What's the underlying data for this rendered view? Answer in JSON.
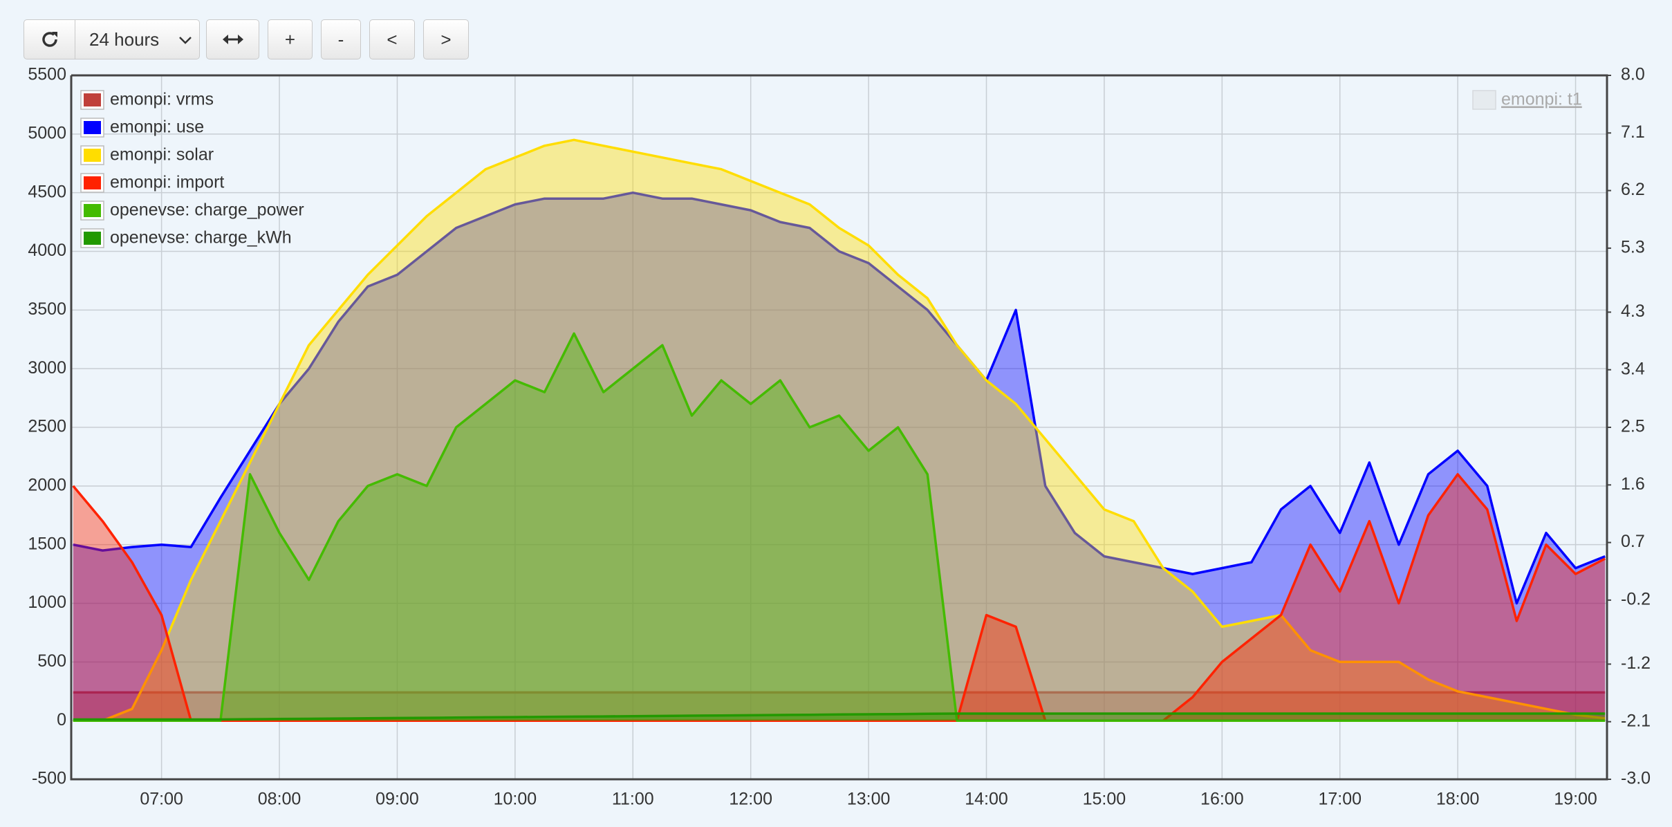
{
  "controls": {
    "period": "24 hours",
    "buttons": [
      "+",
      "-",
      "<",
      ">"
    ]
  },
  "chart_data": {
    "type": "line",
    "x": [
      "06:15",
      "06:30",
      "06:45",
      "07:00",
      "07:15",
      "07:30",
      "07:45",
      "08:00",
      "08:15",
      "08:30",
      "08:45",
      "09:00",
      "09:15",
      "09:30",
      "09:45",
      "10:00",
      "10:15",
      "10:30",
      "10:45",
      "11:00",
      "11:15",
      "11:30",
      "11:45",
      "12:00",
      "12:15",
      "12:30",
      "12:45",
      "13:00",
      "13:15",
      "13:30",
      "13:45",
      "14:00",
      "14:15",
      "14:30",
      "14:45",
      "15:00",
      "15:15",
      "15:30",
      "15:45",
      "16:00",
      "16:15",
      "16:30",
      "16:45",
      "17:00",
      "17:15",
      "17:30",
      "17:45",
      "18:00",
      "18:15",
      "18:30",
      "18:45",
      "19:00",
      "19:15"
    ],
    "xlim": [
      "06:14",
      "19:16"
    ],
    "xticks": [
      "07:00",
      "08:00",
      "09:00",
      "10:00",
      "11:00",
      "12:00",
      "13:00",
      "14:00",
      "15:00",
      "16:00",
      "17:00",
      "18:00",
      "19:00"
    ],
    "ylim": [
      -500,
      5500
    ],
    "yticks": [
      -500,
      0,
      500,
      1000,
      1500,
      2000,
      2500,
      3000,
      3500,
      4000,
      4500,
      5000,
      5500
    ],
    "y2lim": [
      -3,
      8
    ],
    "y2ticks": [
      {
        "value": 8,
        "label": "8.0"
      },
      7.1,
      6.2,
      5.3,
      4.3,
      3.4,
      2.5,
      1.6,
      0.7,
      -0.2,
      -1.2,
      -2.1,
      {
        "value": -3,
        "label": "-3.0"
      }
    ],
    "grid": true,
    "legend": "top-left",
    "series": [
      {
        "name": "emonpi: vrms",
        "color": "#c0403a",
        "values": [
          240,
          240,
          240,
          240,
          240,
          240,
          240,
          240,
          240,
          240,
          240,
          240,
          240,
          240,
          240,
          240,
          240,
          240,
          240,
          240,
          240,
          240,
          240,
          240,
          240,
          240,
          240,
          240,
          240,
          240,
          240,
          240,
          240,
          240,
          240,
          240,
          240,
          240,
          240,
          240,
          240,
          240,
          240,
          240,
          240,
          240,
          240,
          240,
          240,
          240,
          240,
          240,
          240
        ]
      },
      {
        "name": "emonpi: use",
        "color": "#0000ff",
        "values": [
          1500,
          1450,
          1480,
          1500,
          1480,
          1900,
          2300,
          2700,
          3000,
          3400,
          3700,
          3800,
          4000,
          4200,
          4300,
          4400,
          4450,
          4450,
          4450,
          4500,
          4450,
          4450,
          4400,
          4350,
          4250,
          4200,
          4000,
          3900,
          3700,
          3500,
          3200,
          2900,
          3500,
          2000,
          1600,
          1400,
          1350,
          1300,
          1250,
          1300,
          1350,
          1800,
          2000,
          1600,
          2200,
          1500,
          2100,
          2300,
          2000,
          1000,
          1600,
          1300,
          1400
        ]
      },
      {
        "name": "emonpi: solar",
        "color": "#ffdd00",
        "values": [
          0,
          0,
          100,
          600,
          1200,
          1700,
          2200,
          2700,
          3200,
          3500,
          3800,
          4050,
          4300,
          4500,
          4700,
          4800,
          4900,
          4950,
          4900,
          4850,
          4800,
          4750,
          4700,
          4600,
          4500,
          4400,
          4200,
          4050,
          3800,
          3600,
          3200,
          2900,
          2700,
          2400,
          2100,
          1800,
          1700,
          1300,
          1100,
          800,
          850,
          900,
          600,
          500,
          500,
          500,
          350,
          250,
          200,
          150,
          100,
          50,
          20
        ]
      },
      {
        "name": "emonpi: import",
        "color": "#ff2200",
        "values": [
          2000,
          1700,
          1350,
          900,
          0,
          0,
          0,
          0,
          0,
          0,
          0,
          0,
          0,
          0,
          0,
          0,
          0,
          0,
          0,
          0,
          0,
          0,
          0,
          0,
          0,
          0,
          0,
          0,
          0,
          0,
          0,
          900,
          800,
          0,
          0,
          0,
          0,
          0,
          200,
          500,
          700,
          900,
          1500,
          1100,
          1700,
          1000,
          1750,
          2100,
          1800,
          850,
          1500,
          1250,
          1380
        ]
      },
      {
        "name": "openevse: charge_power",
        "color": "#44bb00",
        "values": [
          0,
          0,
          0,
          0,
          0,
          0,
          2100,
          1600,
          1200,
          1700,
          2000,
          2100,
          2000,
          2500,
          2700,
          2900,
          2800,
          3300,
          2800,
          3000,
          3200,
          2600,
          2900,
          2700,
          2900,
          2500,
          2600,
          2300,
          2500,
          2100,
          0,
          0,
          0,
          0,
          0,
          0,
          0,
          0,
          0,
          0,
          0,
          0,
          0,
          0,
          0,
          0,
          0,
          0,
          0,
          0,
          0,
          0,
          0
        ]
      },
      {
        "name": "openevse: charge_kWh",
        "color": "#229900",
        "values": [
          10,
          10,
          10,
          10,
          10,
          10,
          12,
          14,
          16,
          18,
          20,
          22,
          24,
          26,
          28,
          30,
          32,
          34,
          36,
          38,
          40,
          42,
          44,
          46,
          48,
          50,
          52,
          54,
          56,
          58,
          60,
          60,
          60,
          60,
          60,
          60,
          60,
          60,
          60,
          60,
          60,
          60,
          60,
          60,
          60,
          60,
          60,
          60,
          60,
          60,
          60,
          60,
          60
        ]
      }
    ],
    "hidden_series": [
      {
        "name": "emonpi: t1"
      }
    ]
  }
}
